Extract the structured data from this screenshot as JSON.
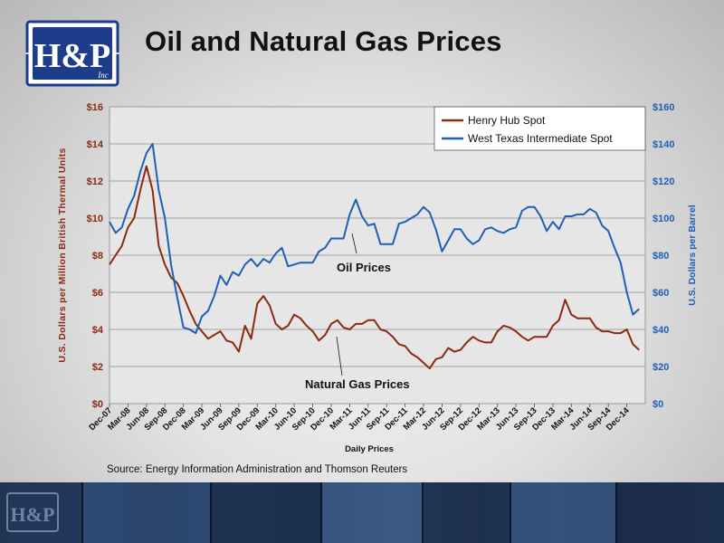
{
  "slide": {
    "title": "Oil and Natural Gas Prices",
    "source": "Source:  Energy Information Administration and Thomson Reuters",
    "logo_text": "H&P",
    "logo_sub": "Inc"
  },
  "colors": {
    "gas": "#8b2a12",
    "oil": "#1f5fb5",
    "left_axis": "#8b2a12",
    "right_axis": "#1f5fb5",
    "logo_blue": "#1d3d8a"
  },
  "chart_data": {
    "type": "line",
    "title": "",
    "xlabel": "Daily Prices",
    "ylabel_left": "U.S. Dollars per Million British Thermal Units",
    "ylabel_right": "U.S. Dollars per Barrel",
    "ylim_left": [
      0,
      16
    ],
    "ylim_right": [
      0,
      160
    ],
    "xlim": [
      "2007-12",
      "2015-03"
    ],
    "left_ticks": [
      "$0",
      "$2",
      "$4",
      "$6",
      "$8",
      "$10",
      "$12",
      "$14",
      "$16"
    ],
    "right_ticks": [
      "$0",
      "$20",
      "$40",
      "$60",
      "$80",
      "$100",
      "$120",
      "$140",
      "$160"
    ],
    "x_ticks": [
      "Dec-07",
      "Mar-08",
      "Jun-08",
      "Sep-08",
      "Dec-08",
      "Mar-09",
      "Jun-09",
      "Sep-09",
      "Dec-09",
      "Mar-10",
      "Jun-10",
      "Sep-10",
      "Dec-10",
      "Mar-11",
      "Jun-11",
      "Sep-11",
      "Dec-11",
      "Mar-12",
      "Jun-12",
      "Sep-12",
      "Dec-12",
      "Mar-13",
      "Jun-13",
      "Sep-13",
      "Dec-13",
      "Mar-14",
      "Jun-14",
      "Sep-14",
      "Dec-14"
    ],
    "grid": true,
    "legend": {
      "placement": "top-right",
      "entries": [
        "Henry Hub Spot",
        "West Texas Intermediate Spot"
      ]
    },
    "annotations": [
      "Oil Prices",
      "Natural Gas Prices"
    ],
    "series": [
      {
        "name": "Henry Hub Spot",
        "axis": "left",
        "x": [
          "2007-12",
          "2008-01",
          "2008-02",
          "2008-03",
          "2008-04",
          "2008-05",
          "2008-06",
          "2008-07",
          "2008-08",
          "2008-09",
          "2008-10",
          "2008-11",
          "2008-12",
          "2009-01",
          "2009-02",
          "2009-03",
          "2009-04",
          "2009-05",
          "2009-06",
          "2009-07",
          "2009-08",
          "2009-09",
          "2009-10",
          "2009-11",
          "2009-12",
          "2010-01",
          "2010-02",
          "2010-03",
          "2010-04",
          "2010-05",
          "2010-06",
          "2010-07",
          "2010-08",
          "2010-09",
          "2010-10",
          "2010-11",
          "2010-12",
          "2011-01",
          "2011-02",
          "2011-03",
          "2011-04",
          "2011-05",
          "2011-06",
          "2011-07",
          "2011-08",
          "2011-09",
          "2011-10",
          "2011-11",
          "2011-12",
          "2012-01",
          "2012-02",
          "2012-03",
          "2012-04",
          "2012-05",
          "2012-06",
          "2012-07",
          "2012-08",
          "2012-09",
          "2012-10",
          "2012-11",
          "2012-12",
          "2013-01",
          "2013-02",
          "2013-03",
          "2013-04",
          "2013-05",
          "2013-06",
          "2013-07",
          "2013-08",
          "2013-09",
          "2013-10",
          "2013-11",
          "2013-12",
          "2014-01",
          "2014-02",
          "2014-03",
          "2014-04",
          "2014-05",
          "2014-06",
          "2014-07",
          "2014-08",
          "2014-09",
          "2014-10",
          "2014-11",
          "2014-12",
          "2015-01",
          "2015-02"
        ],
        "values": [
          7.5,
          8.0,
          8.5,
          9.5,
          10.0,
          11.5,
          12.8,
          11.5,
          8.5,
          7.5,
          6.8,
          6.5,
          5.8,
          5.0,
          4.3,
          3.9,
          3.5,
          3.7,
          3.9,
          3.4,
          3.3,
          2.8,
          4.2,
          3.5,
          5.4,
          5.8,
          5.3,
          4.3,
          4.0,
          4.2,
          4.8,
          4.6,
          4.2,
          3.9,
          3.4,
          3.7,
          4.3,
          4.5,
          4.1,
          4.0,
          4.3,
          4.3,
          4.5,
          4.5,
          4.0,
          3.9,
          3.6,
          3.2,
          3.1,
          2.7,
          2.5,
          2.2,
          1.9,
          2.4,
          2.5,
          3.0,
          2.8,
          2.9,
          3.3,
          3.6,
          3.4,
          3.3,
          3.3,
          3.9,
          4.2,
          4.1,
          3.9,
          3.6,
          3.4,
          3.6,
          3.6,
          3.6,
          4.2,
          4.5,
          5.6,
          4.8,
          4.6,
          4.6,
          4.6,
          4.1,
          3.9,
          3.9,
          3.8,
          3.8,
          4.0,
          3.2,
          2.9
        ]
      },
      {
        "name": "West Texas Intermediate Spot",
        "axis": "right",
        "x": [
          "2007-12",
          "2008-01",
          "2008-02",
          "2008-03",
          "2008-04",
          "2008-05",
          "2008-06",
          "2008-07",
          "2008-08",
          "2008-09",
          "2008-10",
          "2008-11",
          "2008-12",
          "2009-01",
          "2009-02",
          "2009-03",
          "2009-04",
          "2009-05",
          "2009-06",
          "2009-07",
          "2009-08",
          "2009-09",
          "2009-10",
          "2009-11",
          "2009-12",
          "2010-01",
          "2010-02",
          "2010-03",
          "2010-04",
          "2010-05",
          "2010-06",
          "2010-07",
          "2010-08",
          "2010-09",
          "2010-10",
          "2010-11",
          "2010-12",
          "2011-01",
          "2011-02",
          "2011-03",
          "2011-04",
          "2011-05",
          "2011-06",
          "2011-07",
          "2011-08",
          "2011-09",
          "2011-10",
          "2011-11",
          "2011-12",
          "2012-01",
          "2012-02",
          "2012-03",
          "2012-04",
          "2012-05",
          "2012-06",
          "2012-07",
          "2012-08",
          "2012-09",
          "2012-10",
          "2012-11",
          "2012-12",
          "2013-01",
          "2013-02",
          "2013-03",
          "2013-04",
          "2013-05",
          "2013-06",
          "2013-07",
          "2013-08",
          "2013-09",
          "2013-10",
          "2013-11",
          "2013-12",
          "2014-01",
          "2014-02",
          "2014-03",
          "2014-04",
          "2014-05",
          "2014-06",
          "2014-07",
          "2014-08",
          "2014-09",
          "2014-10",
          "2014-11",
          "2014-12",
          "2015-01",
          "2015-02"
        ],
        "values": [
          98,
          92,
          95,
          105,
          112,
          125,
          135,
          140,
          115,
          100,
          75,
          57,
          41,
          40,
          38,
          47,
          50,
          58,
          69,
          64,
          71,
          69,
          75,
          78,
          74,
          78,
          76,
          81,
          84,
          74,
          75,
          76,
          76,
          76,
          82,
          84,
          89,
          89,
          89,
          102,
          110,
          101,
          96,
          97,
          86,
          86,
          86,
          97,
          98,
          100,
          102,
          106,
          103,
          94,
          82,
          88,
          94,
          94,
          89,
          86,
          88,
          94,
          95,
          93,
          92,
          94,
          95,
          104,
          106,
          106,
          101,
          93,
          98,
          94,
          101,
          101,
          102,
          102,
          105,
          103,
          96,
          93,
          84,
          76,
          60,
          48,
          51
        ]
      }
    ]
  }
}
